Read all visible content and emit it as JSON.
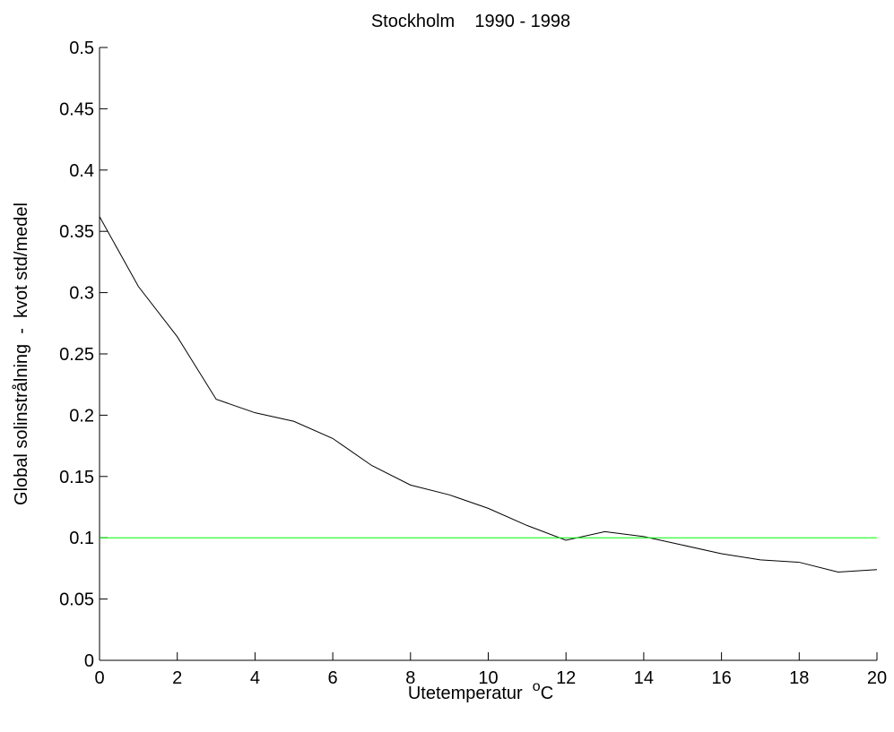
{
  "chart_data": {
    "type": "line",
    "title": "Stockholm    1990 - 1998",
    "xlabel": {
      "text": "Utetemperatur  ",
      "superscript": "o",
      "unit": "C"
    },
    "ylabel": "Global solinstrålning  -  kvot std/medel",
    "xlim": [
      0,
      20
    ],
    "xticks": [
      0,
      2,
      4,
      6,
      8,
      10,
      12,
      14,
      16,
      18,
      20
    ],
    "ylim": [
      0,
      0.5
    ],
    "yticks": [
      0,
      0.05,
      0.1,
      0.15,
      0.2,
      0.25,
      0.3,
      0.35,
      0.4,
      0.45,
      0.5
    ],
    "series": [
      {
        "color": "#000000",
        "x": [
          0,
          1,
          2,
          3,
          4,
          5,
          6,
          7,
          8,
          9,
          10,
          11,
          12,
          13,
          14,
          15,
          16,
          17,
          18,
          19,
          20
        ],
        "values": [
          0.362,
          0.305,
          0.264,
          0.213,
          0.202,
          0.195,
          0.181,
          0.159,
          0.143,
          0.135,
          0.124,
          0.11,
          0.098,
          0.105,
          0.101,
          0.094,
          0.087,
          0.082,
          0.08,
          0.072,
          0.074
        ]
      },
      {
        "color": "#00ff00",
        "x": [
          0,
          20
        ],
        "values": [
          0.1,
          0.1
        ]
      }
    ]
  }
}
